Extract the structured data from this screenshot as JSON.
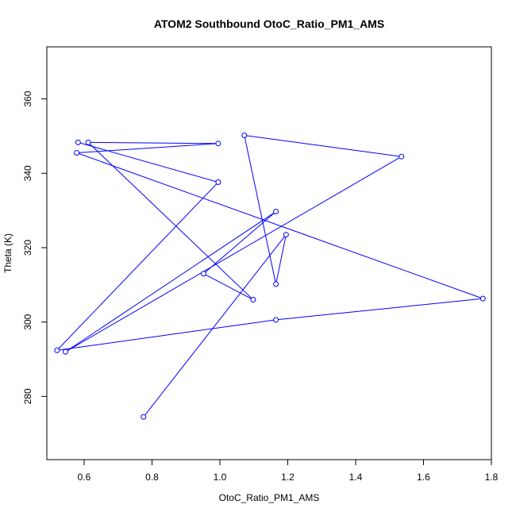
{
  "chart_data": {
    "type": "line",
    "title": "ATOM2 Southbound OtoC_Ratio_PM1_AMS",
    "xlabel": "OtoC_Ratio_PM1_AMS",
    "ylabel": "Theta (K)",
    "xlim": [
      0.49,
      1.8
    ],
    "ylim": [
      263,
      374
    ],
    "xticks": [
      0.6,
      0.8,
      1.0,
      1.2,
      1.4,
      1.6,
      1.8
    ],
    "xtick_labels": [
      "0.6",
      "0.8",
      "1.0",
      "1.2",
      "1.4",
      "1.6",
      "1.8"
    ],
    "yticks": [
      280,
      300,
      320,
      340,
      360
    ],
    "ytick_labels": [
      "280",
      "300",
      "320",
      "340",
      "360"
    ],
    "grid": false,
    "series": [
      {
        "color": "#0000ff",
        "marker": "open-circle",
        "x": [
          0.775,
          1.195,
          1.165,
          1.072,
          1.535,
          0.545,
          1.165,
          0.952,
          1.098,
          0.612,
          0.995,
          0.578,
          1.775,
          1.165,
          0.52,
          0.995,
          0.582
        ],
        "y": [
          274.5,
          323.5,
          310.2,
          350.2,
          344.5,
          292.0,
          329.7,
          313.0,
          306.0,
          348.3,
          348.0,
          345.5,
          306.3,
          300.6,
          292.4,
          337.6,
          348.3
        ]
      }
    ]
  }
}
